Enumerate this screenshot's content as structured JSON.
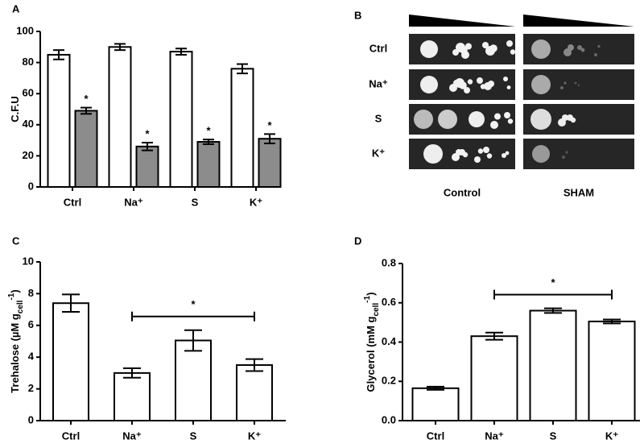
{
  "chart_data": [
    {
      "type": "bar",
      "panel_label": "A",
      "ylabel": [
        {
          "text": "C.F.U"
        }
      ],
      "categories": [
        "Ctrl",
        "Na⁺",
        "S",
        "K⁺"
      ],
      "series": [
        {
          "color": "#ffffff",
          "values": [
            85,
            90,
            87,
            76
          ],
          "errors": [
            3,
            2,
            2,
            3
          ]
        },
        {
          "color": "#8c8c8c",
          "values": [
            49,
            26,
            29,
            31
          ],
          "errors": [
            2,
            2.5,
            1.5,
            3
          ],
          "marks": [
            "*",
            "*",
            "*",
            "*"
          ]
        }
      ],
      "ylim": [
        0,
        100
      ],
      "yticks": [
        0,
        20,
        40,
        60,
        80,
        100
      ]
    },
    {
      "type": "bar",
      "panel_label": "C",
      "ylabel": [
        {
          "text": "Trehalose (µM g"
        },
        {
          "text": "cell",
          "shift": "sub"
        },
        {
          "text": "-1",
          "shift": "super"
        },
        {
          "text": ")"
        }
      ],
      "categories": [
        "Ctrl",
        "Na⁺",
        "S",
        "K⁺"
      ],
      "series": [
        {
          "color": "#ffffff",
          "values": [
            7.4,
            3.0,
            5.05,
            3.5
          ],
          "errors": [
            0.55,
            0.3,
            0.65,
            0.38
          ]
        }
      ],
      "significance": {
        "label": "*",
        "categories": [
          "Na⁺",
          "K⁺"
        ]
      },
      "ylim": [
        0,
        10
      ],
      "yticks": [
        0,
        2,
        4,
        6,
        8,
        10
      ]
    },
    {
      "type": "bar",
      "panel_label": "D",
      "ylabel": [
        {
          "text": "Glycerol (mM g"
        },
        {
          "text": "cell",
          "shift": "sub"
        },
        {
          "text": "-1",
          "shift": "super"
        },
        {
          "text": ")"
        }
      ],
      "categories": [
        "Ctrl",
        "Na⁺",
        "S",
        "K⁺"
      ],
      "series": [
        {
          "color": "#ffffff",
          "values": [
            0.165,
            0.43,
            0.56,
            0.505
          ],
          "errors": [
            0.008,
            0.018,
            0.012,
            0.01
          ]
        }
      ],
      "significance": {
        "label": "*",
        "categories": [
          "Na⁺",
          "K⁺"
        ]
      },
      "ylim": [
        0,
        0.8
      ],
      "yticks": [
        {
          "value": 0,
          "label": "0.0"
        },
        0.2,
        0.4,
        0.6,
        0.8
      ]
    }
  ],
  "image_panel": {
    "panel_label": "B",
    "row_labels": [
      "Ctrl",
      "Na⁺",
      "S",
      "K⁺"
    ],
    "column_labels": [
      "Control",
      "SHAM"
    ]
  }
}
